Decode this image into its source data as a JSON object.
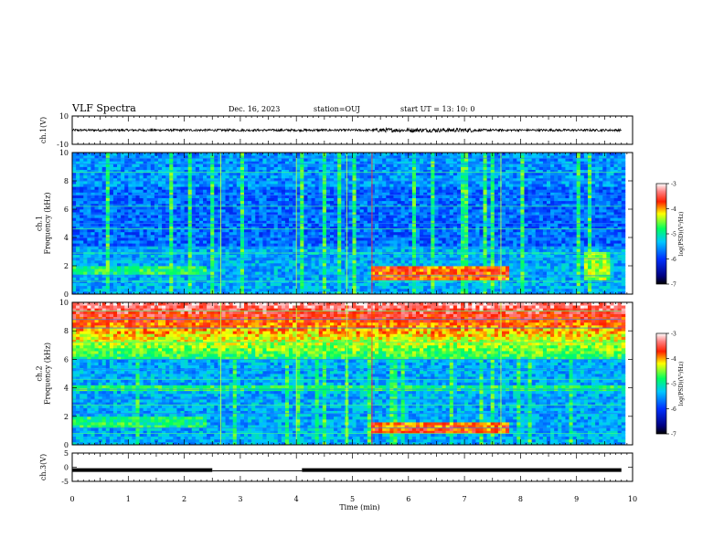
{
  "header": {
    "title": "VLF Spectra",
    "date": "Dec. 16, 2023",
    "station": "station=OUJ",
    "start": "start  UT  =   13: 10: 0"
  },
  "chart_data": [
    {
      "type": "line",
      "name": "ch1-waveform",
      "ylabel": "ch.1(V)",
      "ylim": [
        -10,
        10
      ],
      "yticks": [
        "10",
        "-10"
      ],
      "xlim": [
        0,
        10
      ],
      "description_values": {
        "amplitude_approx": 0.8,
        "burst_center_min": 5.7
      }
    },
    {
      "type": "heatmap",
      "name": "ch1-spectrogram",
      "ylabel": "ch.1\nFrequency (kHz)",
      "ylim": [
        0,
        10
      ],
      "yticks": [
        "0",
        "2",
        "4",
        "6",
        "8",
        "10"
      ],
      "xlim": [
        0,
        10
      ],
      "colorbar": {
        "label": "log(PSD)(V²/Hz)",
        "ticks": [
          "-3",
          "-4",
          "-5",
          "-6",
          "-7"
        ],
        "range": [
          -7,
          -3
        ]
      }
    },
    {
      "type": "heatmap",
      "name": "ch2-spectrogram",
      "ylabel": "ch.2\nFrequency (kHz)",
      "ylim": [
        0,
        10
      ],
      "yticks": [
        "0",
        "2",
        "4",
        "6",
        "8",
        "10"
      ],
      "xlim": [
        0,
        10
      ],
      "colorbar": {
        "label": "log(PSD)(V²/Hz)",
        "ticks": [
          "-3",
          "-4",
          "-5",
          "-6",
          "-7"
        ],
        "range": [
          -7,
          -3
        ]
      }
    },
    {
      "type": "line",
      "name": "ch3-level",
      "ylabel": "ch.3(V)",
      "ylim": [
        -5,
        5
      ],
      "yticks": [
        "5",
        "0",
        "-5"
      ],
      "xlim": [
        0,
        10
      ],
      "xlabel": "Time (min)",
      "xticks": [
        "0",
        "1",
        "2",
        "3",
        "4",
        "5",
        "6",
        "7",
        "8",
        "9",
        "10"
      ],
      "segments": [
        {
          "x": [
            0,
            2.5
          ],
          "y": -1
        },
        {
          "x": [
            2.5,
            4.1
          ],
          "y": -1.3
        },
        {
          "x": [
            4.1,
            9.8
          ],
          "y": -1
        }
      ]
    }
  ]
}
